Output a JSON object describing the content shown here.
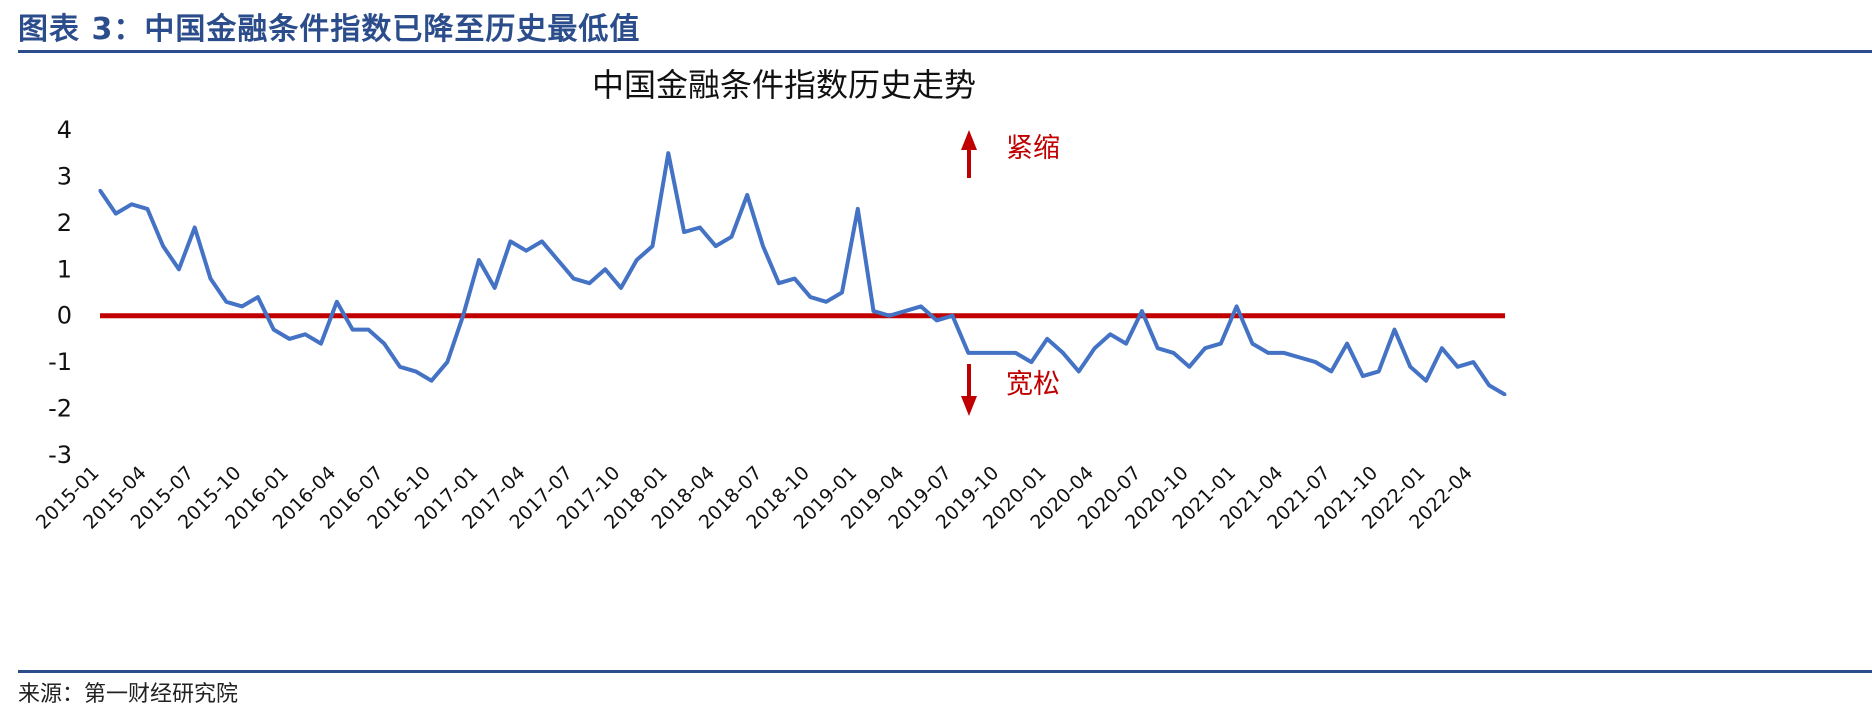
{
  "figure": {
    "label": "图表 3：中国金融条件指数已降至历史最低值",
    "source": "来源：第一财经研究院"
  },
  "colors": {
    "series": "#4472c4",
    "zero_line": "#c00000",
    "annotation": "#c00000",
    "rule": "#2c4d8c"
  },
  "chart_data": {
    "type": "line",
    "title": "中国金融条件指数历史走势",
    "xlabel": "",
    "ylabel": "",
    "ylim": [
      -3,
      4
    ],
    "yticks": [
      4,
      3,
      2,
      1,
      0,
      -1,
      -2,
      -3
    ],
    "xticks": [
      "2015-01",
      "2015-04",
      "2015-07",
      "2015-10",
      "2016-01",
      "2016-04",
      "2016-07",
      "2016-10",
      "2017-01",
      "2017-04",
      "2017-07",
      "2017-10",
      "2018-01",
      "2018-04",
      "2018-07",
      "2018-10",
      "2019-01",
      "2019-04",
      "2019-07",
      "2019-10",
      "2020-01",
      "2020-04",
      "2020-07",
      "2020-10",
      "2021-01",
      "2021-04",
      "2021-07",
      "2021-10",
      "2022-01",
      "2022-04"
    ],
    "grid": false,
    "legend": "none",
    "reference_line": {
      "y": 0
    },
    "annotations": {
      "tight": "紧缩",
      "loose": "宽松"
    },
    "series": [
      {
        "x": [
          "2015-01",
          "2015-02",
          "2015-03",
          "2015-04",
          "2015-05",
          "2015-06",
          "2015-07",
          "2015-08",
          "2015-09",
          "2015-10",
          "2015-11",
          "2015-12",
          "2016-01",
          "2016-02",
          "2016-03",
          "2016-04",
          "2016-05",
          "2016-06",
          "2016-07",
          "2016-08",
          "2016-09",
          "2016-10",
          "2016-11",
          "2016-12",
          "2017-01",
          "2017-02",
          "2017-03",
          "2017-04",
          "2017-05",
          "2017-06",
          "2017-07",
          "2017-08",
          "2017-09",
          "2017-10",
          "2017-11",
          "2017-12",
          "2018-01",
          "2018-02",
          "2018-03",
          "2018-04",
          "2018-05",
          "2018-06",
          "2018-07",
          "2018-08",
          "2018-09",
          "2018-10",
          "2018-11",
          "2018-12",
          "2019-01",
          "2019-02",
          "2019-03",
          "2019-04",
          "2019-05",
          "2019-06",
          "2019-07",
          "2019-08",
          "2019-09",
          "2019-10",
          "2019-11",
          "2019-12",
          "2020-01",
          "2020-02",
          "2020-03",
          "2020-04",
          "2020-05",
          "2020-06",
          "2020-07",
          "2020-08",
          "2020-09",
          "2020-10",
          "2020-11",
          "2020-12",
          "2021-01",
          "2021-02",
          "2021-03",
          "2021-04",
          "2021-05",
          "2021-06",
          "2021-07",
          "2021-08",
          "2021-09",
          "2021-10",
          "2021-11",
          "2021-12",
          "2022-01",
          "2022-02",
          "2022-03",
          "2022-04",
          "2022-05",
          "2022-06"
        ],
        "values": [
          2.7,
          2.2,
          2.4,
          2.3,
          1.5,
          1.0,
          1.9,
          0.8,
          0.3,
          0.2,
          0.4,
          -0.3,
          -0.5,
          -0.4,
          -0.6,
          0.3,
          -0.3,
          -0.3,
          -0.6,
          -1.1,
          -1.2,
          -1.4,
          -1.0,
          0.0,
          1.2,
          0.6,
          1.6,
          1.4,
          1.6,
          1.2,
          0.8,
          0.7,
          1.0,
          0.6,
          1.2,
          1.5,
          3.5,
          1.8,
          1.9,
          1.5,
          1.7,
          2.6,
          1.5,
          0.7,
          0.8,
          0.4,
          0.3,
          0.5,
          2.3,
          0.1,
          0.0,
          0.1,
          0.2,
          -0.1,
          0.0,
          -0.8,
          -0.8,
          -0.8,
          -0.8,
          -1.0,
          -0.5,
          -0.8,
          -1.2,
          -0.7,
          -0.4,
          -0.6,
          0.1,
          -0.7,
          -0.8,
          -1.1,
          -0.7,
          -0.6,
          0.2,
          -0.6,
          -0.8,
          -0.8,
          -0.9,
          -1.0,
          -1.2,
          -0.6,
          -1.3,
          -1.2,
          -0.3,
          -1.1,
          -1.4,
          -0.7,
          -1.1,
          -1.0,
          -1.5,
          -1.7
        ]
      }
    ]
  }
}
